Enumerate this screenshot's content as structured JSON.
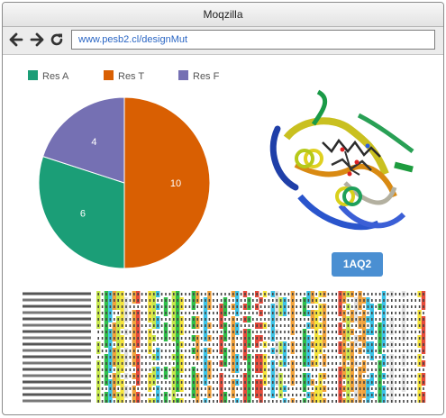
{
  "window": {
    "title": "Moqzilla"
  },
  "navigation": {
    "url": "www.pesb2.cl/designMut"
  },
  "icons": {
    "back": "arrow-left-icon",
    "forward": "arrow-right-icon",
    "reload": "reload-icon"
  },
  "chart_data": {
    "type": "pie",
    "legend_position": "top",
    "categories": [
      "Res A",
      "Res T",
      "Res F"
    ],
    "values": [
      6,
      10,
      4
    ],
    "colors": [
      "#1b9e77",
      "#d95f02",
      "#7570b3"
    ]
  },
  "structure": {
    "pdb_button_label": "1AQ2"
  }
}
